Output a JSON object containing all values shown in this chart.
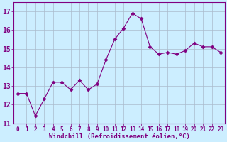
{
  "x": [
    0,
    1,
    2,
    3,
    4,
    5,
    6,
    7,
    8,
    9,
    10,
    11,
    12,
    13,
    14,
    15,
    16,
    17,
    18,
    19,
    20,
    21,
    22,
    23
  ],
  "y": [
    12.6,
    12.6,
    11.4,
    12.3,
    13.2,
    13.2,
    12.8,
    13.3,
    12.8,
    13.1,
    14.4,
    15.5,
    16.1,
    16.9,
    16.6,
    15.1,
    14.7,
    14.8,
    14.7,
    14.9,
    15.3,
    15.1,
    15.1,
    14.8
  ],
  "line_color": "#800080",
  "marker": "D",
  "marker_size": 2.5,
  "bg_color": "#cceeff",
  "grid_color": "#aabbcc",
  "ylim": [
    11,
    17.5
  ],
  "xlim": [
    -0.5,
    23.5
  ],
  "yticks": [
    11,
    12,
    13,
    14,
    15,
    16,
    17
  ],
  "xtick_labels": [
    "0",
    "1",
    "2",
    "3",
    "4",
    "5",
    "6",
    "7",
    "8",
    "9",
    "10",
    "11",
    "12",
    "13",
    "14",
    "15",
    "16",
    "17",
    "18",
    "19",
    "20",
    "21",
    "22",
    "23"
  ],
  "xlabel": "Windchill (Refroidissement éolien,°C)",
  "font_color": "#800080",
  "ytick_fontsize": 7,
  "xtick_fontsize": 5.5,
  "xlabel_fontsize": 6.5
}
